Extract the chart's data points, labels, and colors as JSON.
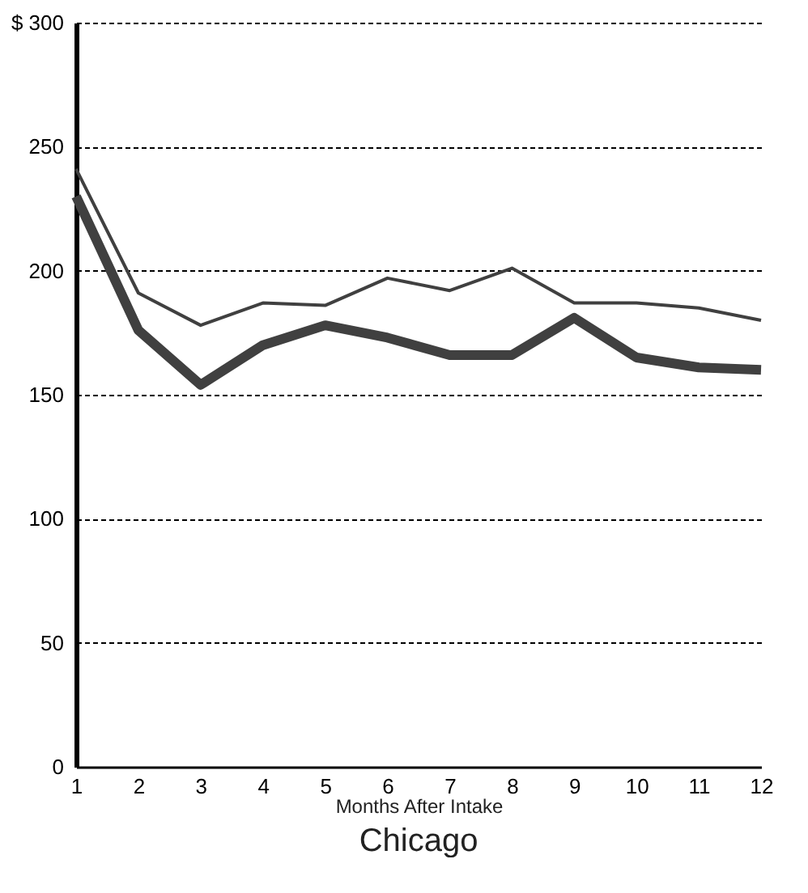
{
  "chart_data": {
    "type": "line",
    "title": "Chicago",
    "xlabel": "Months After Intake",
    "x": [
      1,
      2,
      3,
      4,
      5,
      6,
      7,
      8,
      9,
      10,
      11,
      12
    ],
    "series": [
      {
        "color": "#404040",
        "values": [
          241,
          191,
          178,
          187,
          186,
          197,
          192,
          201,
          187,
          187,
          185,
          180
        ]
      },
      {
        "color": "#404040",
        "values": [
          230,
          176,
          154,
          170,
          178,
          173,
          166,
          166,
          181,
          165,
          161,
          160
        ]
      }
    ],
    "xlim": [
      1,
      12
    ],
    "xticks": [
      1,
      2,
      3,
      4,
      5,
      6,
      7,
      8,
      9,
      10,
      11,
      12
    ],
    "ylim": [
      0,
      300
    ],
    "yticks": [
      0,
      50,
      100,
      150,
      200,
      250,
      {
        "value": 300,
        "label": "$ 300"
      }
    ],
    "grid": "y",
    "marker": "none",
    "line_style": "solid"
  }
}
